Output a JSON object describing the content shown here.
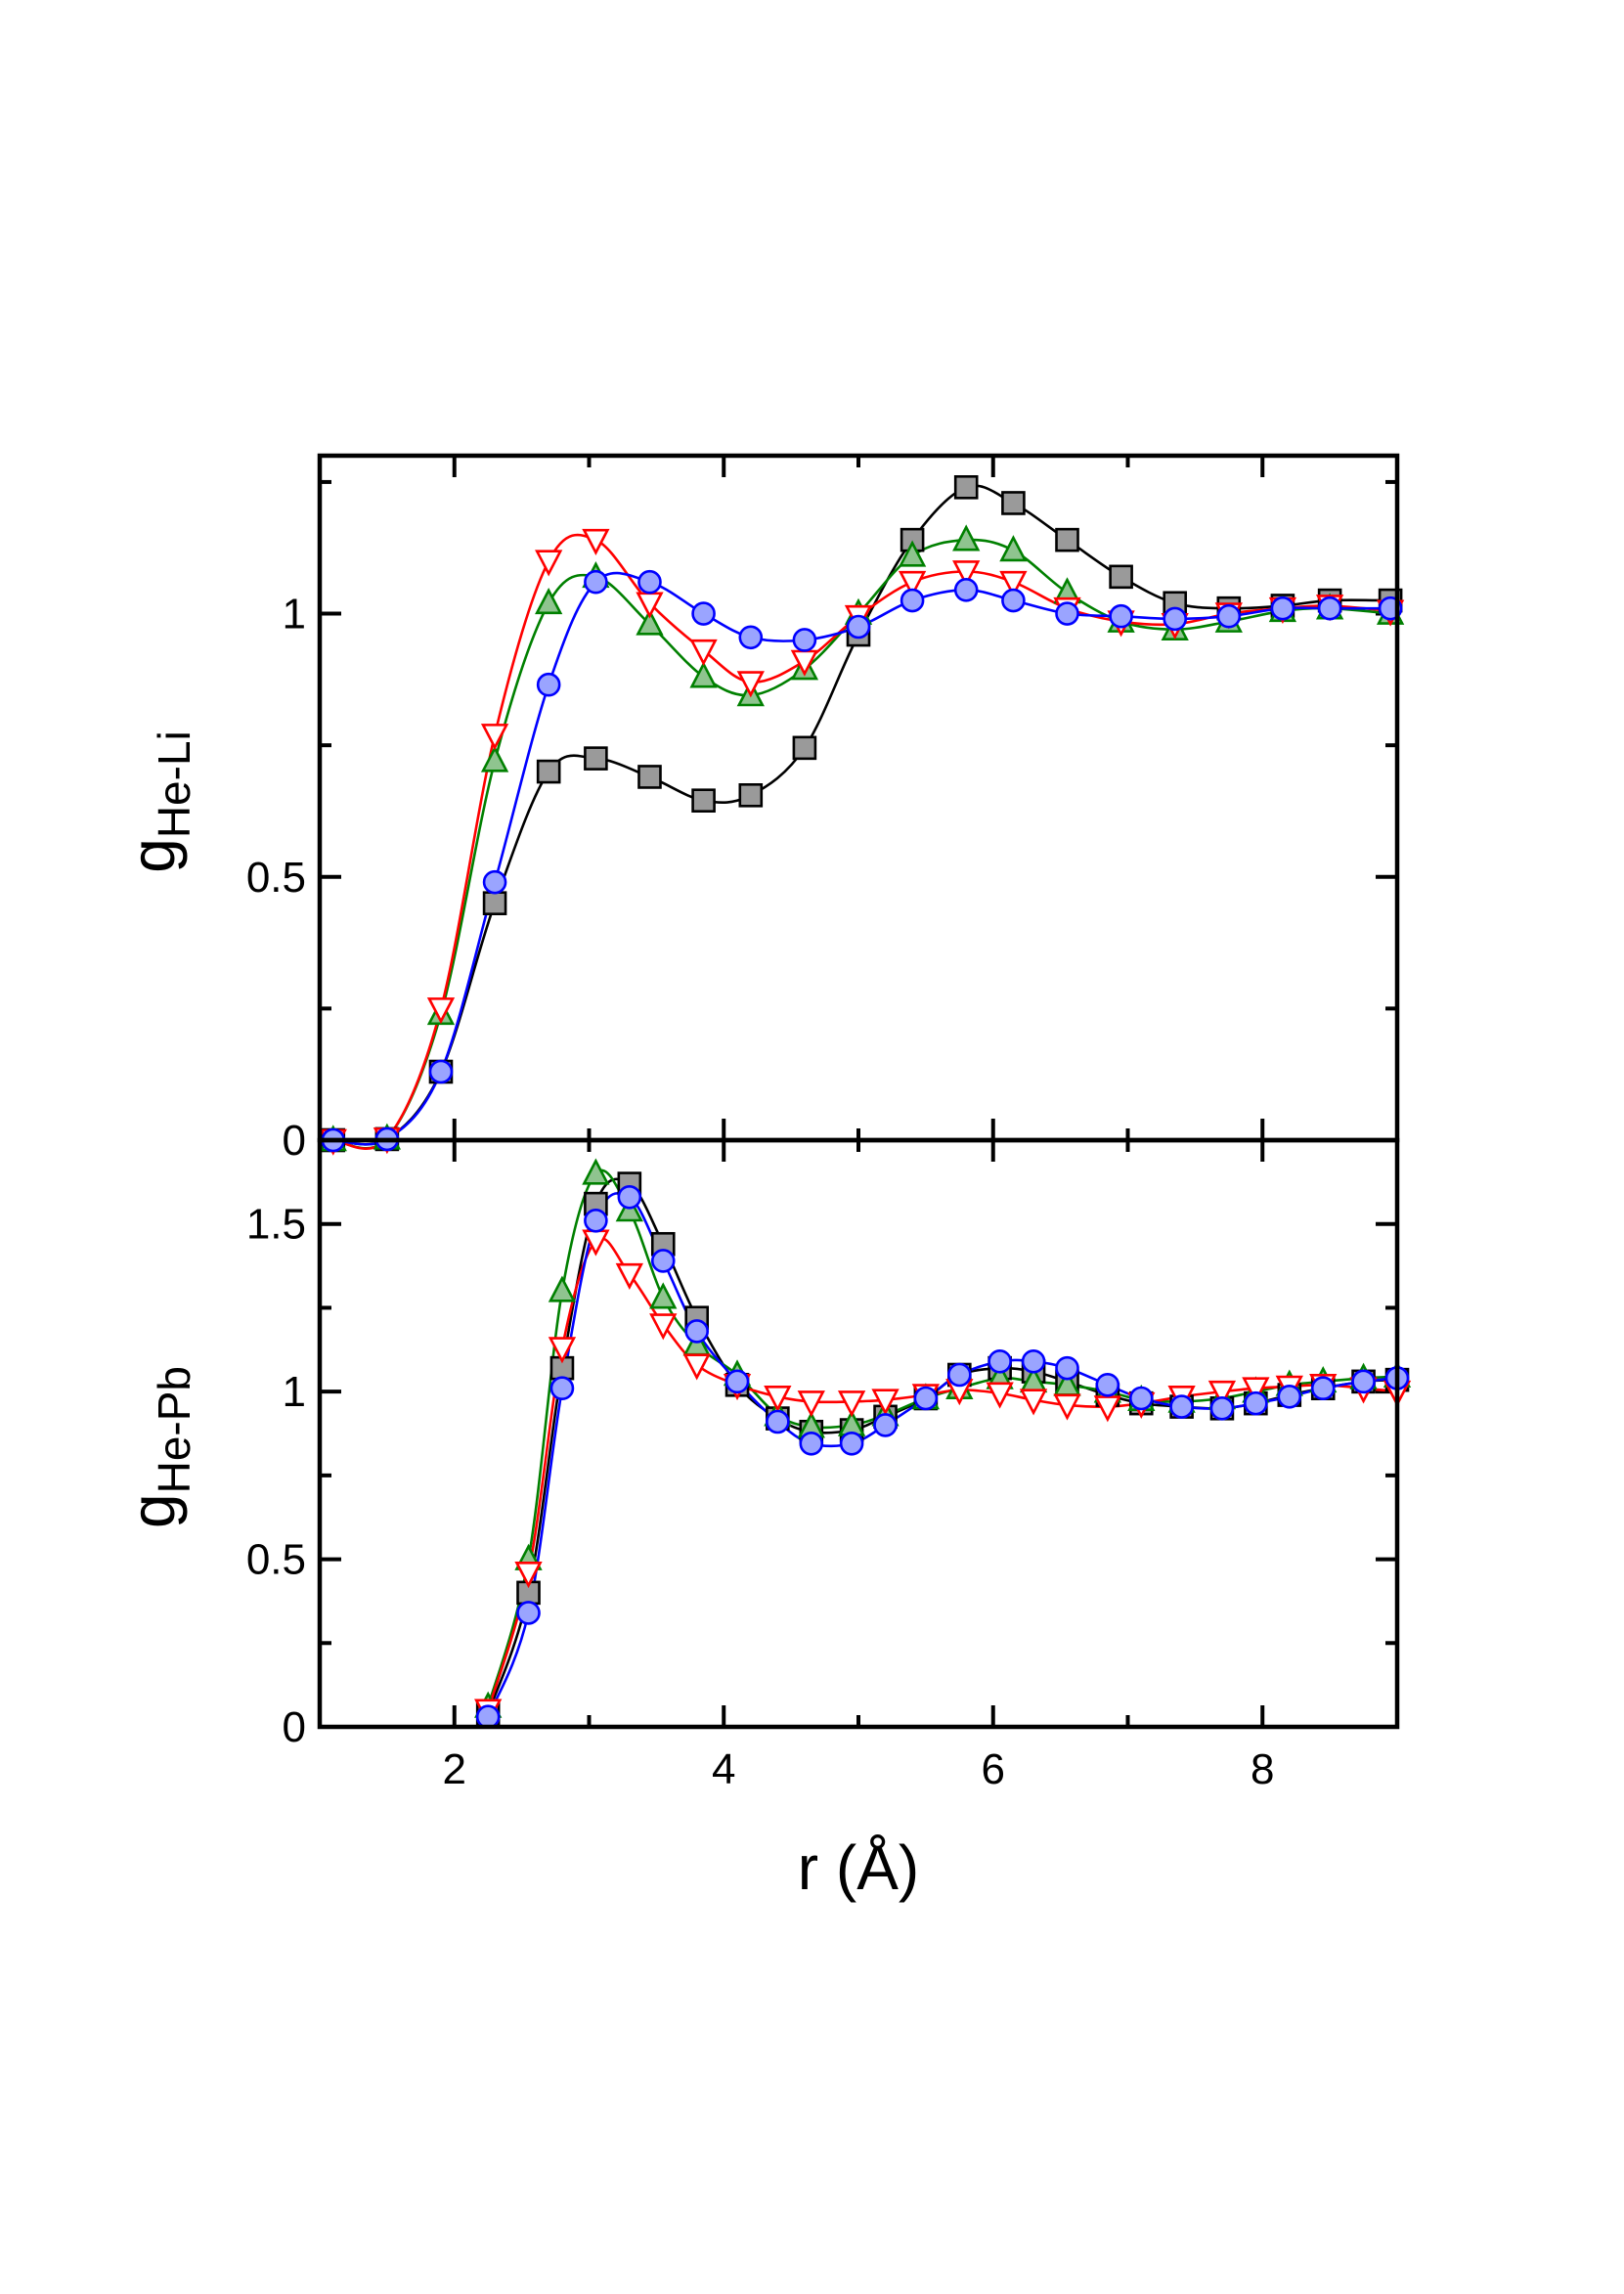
{
  "chart_data": [
    {
      "type": "line",
      "panel": "top",
      "ylabel_main": "g",
      "ylabel_sub": "He-Li",
      "xlim": [
        1,
        9
      ],
      "ylim": [
        0,
        1.3
      ],
      "yticks": [
        0,
        0.5,
        1
      ],
      "ytick_labels": [
        "0",
        "0.5",
        "1"
      ],
      "yminor": [
        0.25,
        0.75,
        1.25
      ],
      "xticks": [
        2,
        4,
        6,
        8
      ],
      "xminor": [
        3,
        5,
        7
      ],
      "series": [
        {
          "name": "black-squares",
          "color": "#000000",
          "marker": "square",
          "x": [
            1.1,
            1.5,
            1.9,
            2.3,
            2.7,
            3.05,
            3.45,
            3.85,
            4.2,
            4.6,
            5.0,
            5.4,
            5.8,
            6.15,
            6.55,
            6.95,
            7.35,
            7.75,
            8.15,
            8.5,
            8.95
          ],
          "y": [
            0.0,
            0.002,
            0.13,
            0.45,
            0.7,
            0.725,
            0.69,
            0.645,
            0.655,
            0.745,
            0.96,
            1.14,
            1.24,
            1.21,
            1.14,
            1.07,
            1.02,
            1.01,
            1.015,
            1.025,
            1.025
          ]
        },
        {
          "name": "green-triangles",
          "color": "#008000",
          "marker": "triangle-up",
          "x": [
            1.1,
            1.5,
            1.9,
            2.3,
            2.7,
            3.05,
            3.45,
            3.85,
            4.2,
            4.6,
            5.0,
            5.4,
            5.8,
            6.15,
            6.55,
            6.95,
            7.35,
            7.75,
            8.15,
            8.5,
            8.95
          ],
          "y": [
            0.0,
            0.003,
            0.24,
            0.72,
            1.02,
            1.07,
            0.98,
            0.88,
            0.845,
            0.895,
            1.0,
            1.11,
            1.14,
            1.12,
            1.04,
            0.985,
            0.97,
            0.985,
            1.005,
            1.01,
            1.0
          ]
        },
        {
          "name": "red-triangles-down",
          "color": "#ff0000",
          "marker": "triangle-down",
          "x": [
            1.1,
            1.5,
            1.9,
            2.3,
            2.7,
            3.05,
            3.45,
            3.85,
            4.2,
            4.6,
            5.0,
            5.4,
            5.8,
            6.15,
            6.55,
            6.95,
            7.35,
            7.75,
            8.15,
            8.5,
            8.95
          ],
          "y": [
            0.0,
            0.003,
            0.25,
            0.77,
            1.1,
            1.14,
            1.02,
            0.93,
            0.87,
            0.91,
            0.995,
            1.06,
            1.08,
            1.06,
            1.01,
            0.985,
            0.98,
            1.0,
            1.01,
            1.015,
            1.005
          ]
        },
        {
          "name": "blue-circles",
          "color": "#0000ff",
          "marker": "circle",
          "x": [
            1.1,
            1.5,
            1.9,
            2.3,
            2.7,
            3.05,
            3.45,
            3.85,
            4.2,
            4.6,
            5.0,
            5.4,
            5.8,
            6.15,
            6.55,
            6.95,
            7.35,
            7.75,
            8.15,
            8.5,
            8.95
          ],
          "y": [
            0.0,
            0.002,
            0.13,
            0.49,
            0.865,
            1.06,
            1.06,
            1.0,
            0.955,
            0.95,
            0.975,
            1.025,
            1.045,
            1.025,
            1.0,
            0.995,
            0.99,
            0.995,
            1.01,
            1.01,
            1.01
          ]
        }
      ]
    },
    {
      "type": "line",
      "panel": "bottom",
      "xlabel": "r (Å)",
      "ylabel_main": "g",
      "ylabel_sub": "He-Pb",
      "xlim": [
        1,
        9
      ],
      "ylim": [
        0,
        1.75
      ],
      "yticks": [
        0,
        0.5,
        1,
        1.5
      ],
      "ytick_labels": [
        "0",
        "0.5",
        "1",
        "1.5"
      ],
      "yminor": [
        0.25,
        0.75,
        1.25
      ],
      "xticks": [
        2,
        4,
        6,
        8
      ],
      "xtick_labels": [
        "2",
        "4",
        "6",
        "8"
      ],
      "xminor": [
        3,
        5,
        7
      ],
      "series": [
        {
          "name": "black-squares",
          "color": "#000000",
          "marker": "square",
          "x": [
            2.25,
            2.55,
            2.8,
            3.05,
            3.3,
            3.55,
            3.8,
            4.1,
            4.4,
            4.65,
            4.95,
            5.2,
            5.5,
            5.75,
            6.05,
            6.3,
            6.55,
            6.85,
            7.1,
            7.4,
            7.7,
            7.95,
            8.2,
            8.45,
            8.75,
            9.0
          ],
          "y": [
            0.04,
            0.4,
            1.07,
            1.56,
            1.62,
            1.44,
            1.22,
            1.02,
            0.92,
            0.88,
            0.885,
            0.925,
            0.98,
            1.05,
            1.07,
            1.06,
            1.03,
            0.99,
            0.965,
            0.955,
            0.95,
            0.965,
            0.99,
            1.01,
            1.03,
            1.035
          ]
        },
        {
          "name": "green-triangles",
          "color": "#008000",
          "marker": "triangle-up",
          "x": [
            2.25,
            2.55,
            2.8,
            3.05,
            3.3,
            3.55,
            3.8,
            4.1,
            4.4,
            4.65,
            4.95,
            5.2,
            5.5,
            5.75,
            6.05,
            6.3,
            6.55,
            6.85,
            7.1,
            7.4,
            7.7,
            7.95,
            8.2,
            8.45,
            8.75,
            9.0
          ],
          "y": [
            0.06,
            0.5,
            1.3,
            1.65,
            1.54,
            1.28,
            1.14,
            1.05,
            0.93,
            0.895,
            0.9,
            0.93,
            0.98,
            1.01,
            1.04,
            1.03,
            1.02,
            1.0,
            0.975,
            0.97,
            0.98,
            1.0,
            1.02,
            1.03,
            1.04,
            1.045
          ]
        },
        {
          "name": "red-triangles-down",
          "color": "#ff0000",
          "marker": "triangle-down",
          "x": [
            2.25,
            2.55,
            2.8,
            3.05,
            3.3,
            3.55,
            3.8,
            4.1,
            4.4,
            4.65,
            4.95,
            5.2,
            5.5,
            5.75,
            6.05,
            6.3,
            6.55,
            6.85,
            7.1,
            7.4,
            7.7,
            7.95,
            8.2,
            8.45,
            8.75,
            9.0
          ],
          "y": [
            0.05,
            0.46,
            1.13,
            1.45,
            1.35,
            1.2,
            1.08,
            1.02,
            0.985,
            0.97,
            0.97,
            0.975,
            0.99,
            1.005,
            0.995,
            0.975,
            0.96,
            0.955,
            0.965,
            0.985,
            1.0,
            1.01,
            1.015,
            1.02,
            1.01,
            1.0
          ]
        },
        {
          "name": "blue-circles",
          "color": "#0000ff",
          "marker": "circle",
          "x": [
            2.25,
            2.55,
            2.8,
            3.05,
            3.3,
            3.55,
            3.8,
            4.1,
            4.4,
            4.65,
            4.95,
            5.2,
            5.5,
            5.75,
            6.05,
            6.3,
            6.55,
            6.85,
            7.1,
            7.4,
            7.7,
            7.95,
            8.2,
            8.45,
            8.75,
            9.0
          ],
          "y": [
            0.03,
            0.34,
            1.01,
            1.51,
            1.58,
            1.39,
            1.18,
            1.03,
            0.91,
            0.845,
            0.845,
            0.9,
            0.98,
            1.05,
            1.09,
            1.09,
            1.07,
            1.02,
            0.98,
            0.955,
            0.95,
            0.965,
            0.985,
            1.01,
            1.03,
            1.04
          ]
        }
      ]
    }
  ]
}
